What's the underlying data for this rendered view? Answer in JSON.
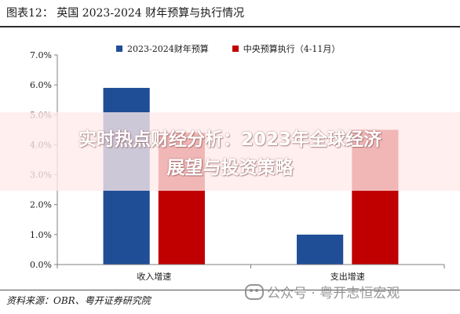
{
  "header": {
    "title": "图表12：  英国 2023-2024 财年预算与执行情况"
  },
  "footer": {
    "source": "资料来源：OBR、粤开证券研究院"
  },
  "overlay": {
    "line1": "实时热点财经分析：2023年全球经济",
    "line2": "展望与投资策略"
  },
  "watermark": {
    "text": "公众号 · 粤开志恒宏观"
  },
  "colors": {
    "budget": "#1f4e96",
    "actual": "#c00000",
    "axis": "#808080"
  },
  "chart_data": {
    "type": "bar",
    "title": "",
    "xlabel": "",
    "ylabel": "",
    "categories": [
      "收入增速",
      "支出增速"
    ],
    "series": [
      {
        "name": "2023-2024财年预算",
        "values": [
          5.9,
          1.0
        ]
      },
      {
        "name": "中央预算执行（4-11月）",
        "values": [
          4.4,
          4.5
        ]
      }
    ],
    "ylim": [
      0,
      7
    ],
    "yticks": [
      "0.0%",
      "1.0%",
      "2.0%",
      "3.0%",
      "4.0%",
      "5.0%",
      "6.0%",
      "7.0%"
    ],
    "grid": false,
    "legend": "top-center"
  }
}
